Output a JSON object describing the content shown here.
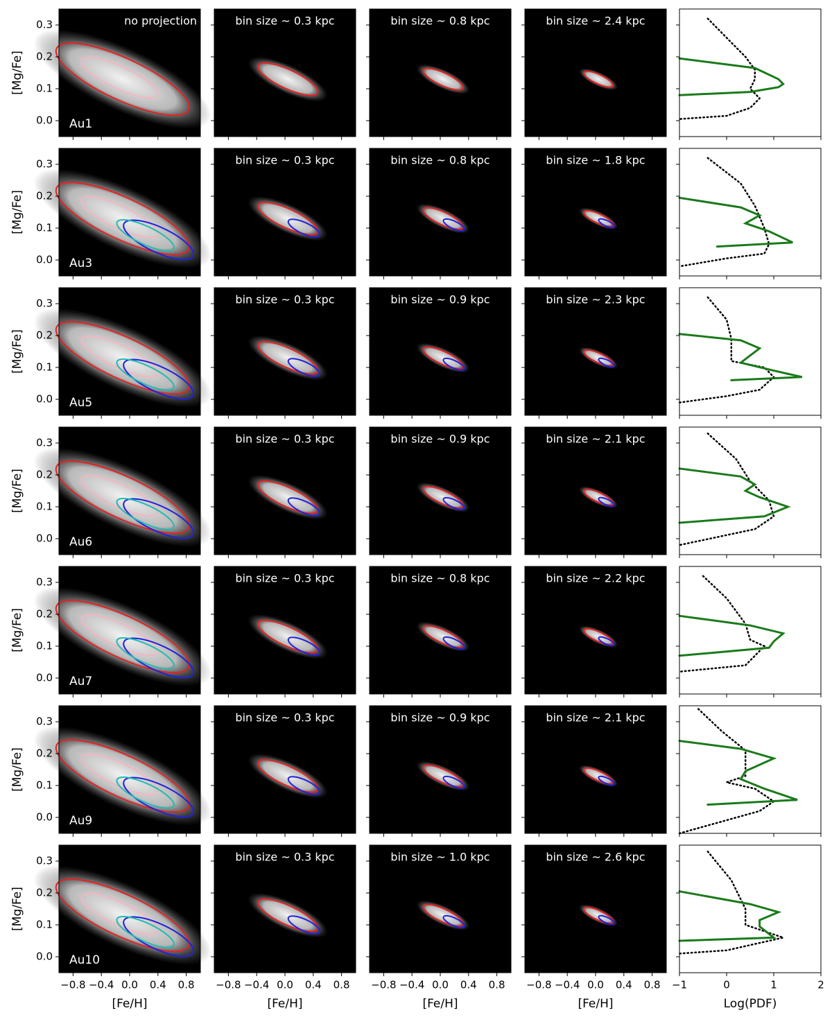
{
  "chart_data": {
    "type": "heatmap-grid",
    "xlabel": "[Fe/H]",
    "ylabel": "[Mg/Fe]",
    "pdf_xlabel": "Log(PDF)",
    "xlim": [
      -1,
      1
    ],
    "xticks": [
      {
        "value": -0.8,
        "label": "−0.8"
      },
      {
        "value": -0.4,
        "label": "−0.4"
      },
      {
        "value": 0,
        "label": "0.0"
      },
      0.4,
      0.8
    ],
    "ylim": [
      -0.05,
      0.35
    ],
    "yticks": [
      {
        "value": 0,
        "label": "0.0"
      },
      0.1,
      0.2,
      0.3
    ],
    "pdf_xlim": [
      -1,
      2
    ],
    "pdf_xticks": [
      {
        "value": -1,
        "label": "−1"
      },
      0,
      1,
      2
    ],
    "green_color": "#1a7a1a",
    "dotted_color": "#000000",
    "rows": [
      {
        "name": "Au1",
        "panel_labels": [
          "no projection",
          "bin size ~ 0.3 kpc",
          "bin size ~ 0.8 kpc",
          "bin size ~ 2.4 kpc"
        ],
        "green": {
          "x": [
            -1,
            0.6,
            1.1,
            1.2,
            1.1,
            0.5,
            -1
          ],
          "y": [
            0.195,
            0.165,
            0.13,
            0.115,
            0.105,
            0.09,
            0.08
          ]
        },
        "dotted": {
          "x": [
            -0.4,
            0,
            0.4,
            0.6,
            0.6,
            0.5,
            0.7,
            0.5,
            0,
            -1
          ],
          "y": [
            0.32,
            0.26,
            0.2,
            0.16,
            0.13,
            0.1,
            0.07,
            0.04,
            0.015,
            0.005
          ]
        }
      },
      {
        "name": "Au3",
        "panel_labels": [
          null,
          "bin size ~ 0.3 kpc",
          "bin size ~ 0.8 kpc",
          "bin size ~ 1.8 kpc"
        ],
        "green": {
          "x": [
            -1,
            0.3,
            0.7,
            0.4,
            0.9,
            1.4,
            -0.2
          ],
          "y": [
            0.195,
            0.165,
            0.14,
            0.115,
            0.09,
            0.055,
            0.042
          ]
        },
        "dotted": {
          "x": [
            -0.4,
            0.3,
            0.6,
            0.8,
            0.9,
            0.8,
            0,
            -1
          ],
          "y": [
            0.32,
            0.24,
            0.17,
            0.1,
            0.05,
            0.02,
            0.005,
            -0.02
          ]
        }
      },
      {
        "name": "Au5",
        "panel_labels": [
          null,
          "bin size ~ 0.3 kpc",
          "bin size ~ 0.9 kpc",
          "bin size ~ 2.3 kpc"
        ],
        "green": {
          "x": [
            -1,
            0.3,
            0.7,
            0.3,
            1,
            1.6,
            0.1
          ],
          "y": [
            0.205,
            0.185,
            0.16,
            0.115,
            0.09,
            0.07,
            0.06
          ]
        },
        "dotted": {
          "x": [
            -0.4,
            0,
            0.1,
            0.1,
            0.8,
            1,
            0.7,
            0,
            -1
          ],
          "y": [
            0.32,
            0.25,
            0.19,
            0.12,
            0.1,
            0.07,
            0.03,
            0.01,
            -0.01
          ]
        }
      },
      {
        "name": "Au6",
        "panel_labels": [
          null,
          "bin size ~ 0.3 kpc",
          "bin size ~ 0.9 kpc",
          "bin size ~ 2.1 kpc"
        ],
        "green": {
          "x": [
            -1,
            0.3,
            0.6,
            0.4,
            0.7,
            1.3,
            0.8,
            -1
          ],
          "y": [
            0.22,
            0.195,
            0.17,
            0.15,
            0.13,
            0.1,
            0.07,
            0.05
          ]
        },
        "dotted": {
          "x": [
            -0.4,
            0.2,
            0.5,
            0.9,
            1,
            0.6,
            -1
          ],
          "y": [
            0.33,
            0.25,
            0.18,
            0.12,
            0.07,
            0.03,
            -0.02
          ]
        }
      },
      {
        "name": "Au7",
        "panel_labels": [
          null,
          "bin size ~ 0.3 kpc",
          "bin size ~ 0.8 kpc",
          "bin size ~ 2.2 kpc"
        ],
        "green": {
          "x": [
            -1,
            0.5,
            1.2,
            1,
            0.9,
            -1
          ],
          "y": [
            0.195,
            0.165,
            0.14,
            0.115,
            0.095,
            0.07
          ]
        },
        "dotted": {
          "x": [
            -0.5,
            0,
            0.4,
            0.5,
            0.8,
            0.6,
            0.4,
            -1
          ],
          "y": [
            0.32,
            0.25,
            0.17,
            0.12,
            0.1,
            0.07,
            0.04,
            0.02
          ]
        }
      },
      {
        "name": "Au9",
        "panel_labels": [
          null,
          "bin size ~ 0.3 kpc",
          "bin size ~ 0.9 kpc",
          "bin size ~ 2.1 kpc"
        ],
        "green": {
          "x": [
            -1,
            0.3,
            1,
            0.4,
            0.3,
            0.8,
            1.5,
            -0.4
          ],
          "y": [
            0.24,
            0.215,
            0.185,
            0.145,
            0.12,
            0.09,
            0.055,
            0.04
          ]
        },
        "dotted": {
          "x": [
            -0.6,
            -0.1,
            0.4,
            0.4,
            0,
            0.6,
            1,
            0.7,
            -1
          ],
          "y": [
            0.34,
            0.27,
            0.21,
            0.13,
            0.11,
            0.09,
            0.05,
            0.02,
            -0.05
          ]
        }
      },
      {
        "name": "Au10",
        "panel_labels": [
          null,
          "bin size ~ 0.3 kpc",
          "bin size ~ 1.0 kpc",
          "bin size ~ 2.6 kpc"
        ],
        "green": {
          "x": [
            -1,
            0.5,
            1.1,
            0.7,
            0.7,
            1,
            -1
          ],
          "y": [
            0.205,
            0.165,
            0.14,
            0.115,
            0.095,
            0.06,
            0.05
          ]
        },
        "dotted": {
          "x": [
            -0.4,
            0.1,
            0.4,
            0.4,
            1.2,
            0,
            -1
          ],
          "y": [
            0.33,
            0.24,
            0.15,
            0.1,
            0.06,
            0.02,
            0.01
          ]
        }
      }
    ]
  }
}
